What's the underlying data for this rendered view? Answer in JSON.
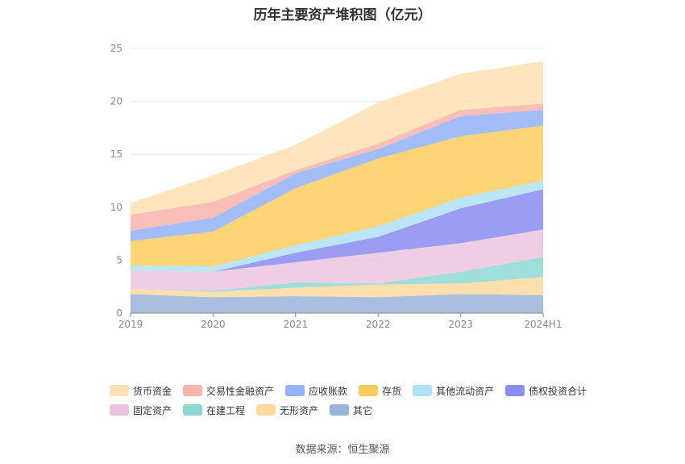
{
  "title": "历年主要资产堆积图（亿元）",
  "source": "数据来源：恒生聚源",
  "chart_data": {
    "type": "area",
    "stacked": true,
    "title": "历年主要资产堆积图（亿元）",
    "categories": [
      "2019",
      "2020",
      "2021",
      "2022",
      "2023",
      "2024H1"
    ],
    "ylim": [
      0,
      25
    ],
    "yticks": [
      0,
      5,
      10,
      15,
      20,
      25
    ],
    "grid": true,
    "legend_position": "bottom",
    "series": [
      {
        "name": "其它",
        "color": "#9bb3db",
        "values": [
          1.8,
          1.5,
          1.6,
          1.5,
          1.8,
          1.7
        ]
      },
      {
        "name": "无形资产",
        "color": "#fdd9a0",
        "values": [
          0.5,
          0.5,
          0.8,
          1.2,
          1.0,
          1.7
        ]
      },
      {
        "name": "在建工程",
        "color": "#8fd8d2",
        "values": [
          0.0,
          0.1,
          0.5,
          0.1,
          1.1,
          1.9
        ]
      },
      {
        "name": "固定资产",
        "color": "#ecc4e0",
        "values": [
          1.7,
          1.8,
          1.9,
          2.9,
          2.7,
          2.6
        ]
      },
      {
        "name": "债权投资合计",
        "color": "#8a8cf0",
        "values": [
          0.0,
          0.0,
          0.9,
          1.5,
          3.3,
          3.8
        ]
      },
      {
        "name": "其他流动资产",
        "color": "#aee2f6",
        "values": [
          0.5,
          0.5,
          0.7,
          1.0,
          1.0,
          0.8
        ]
      },
      {
        "name": "存货",
        "color": "#fdcc5e",
        "values": [
          2.3,
          3.3,
          5.4,
          6.4,
          5.8,
          5.2
        ]
      },
      {
        "name": "应收账款",
        "color": "#93b2f9",
        "values": [
          1.0,
          1.3,
          1.4,
          0.9,
          1.9,
          1.5
        ]
      },
      {
        "name": "交易性金融资产",
        "color": "#f8b3ab",
        "values": [
          1.5,
          1.5,
          0.3,
          0.5,
          0.6,
          0.6
        ]
      },
      {
        "name": "货币资金",
        "color": "#fee1b2",
        "values": [
          1.1,
          2.5,
          2.4,
          3.9,
          3.4,
          4.0
        ]
      }
    ],
    "legend_order": [
      "货币资金",
      "交易性金融资产",
      "应收账款",
      "存货",
      "其他流动资产",
      "债权投资合计",
      "固定资产",
      "在建工程",
      "无形资产",
      "其它"
    ]
  }
}
